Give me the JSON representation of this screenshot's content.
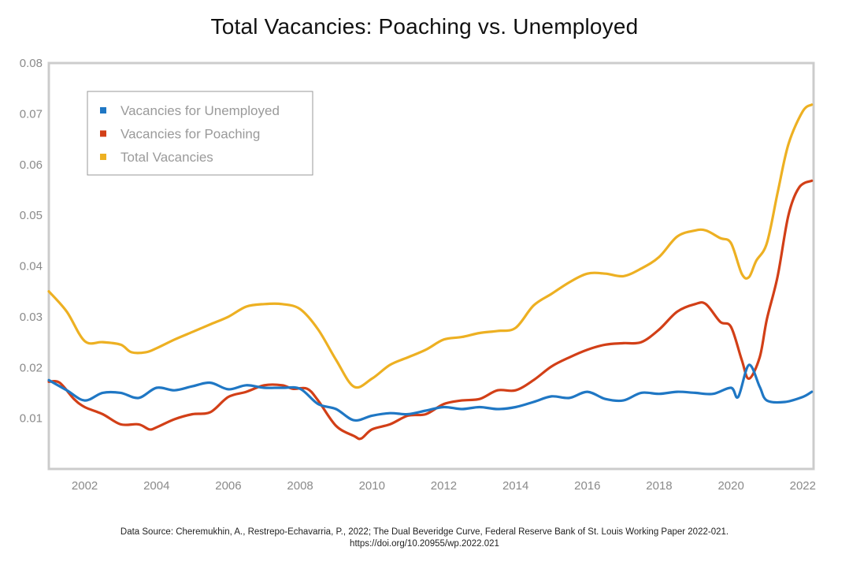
{
  "title": "Total Vacancies: Poaching vs. Unemployed",
  "source": {
    "line1": "Data Source: Cheremukhin, A., Restrepo-Echavarria, P., 2022; The Dual Beveridge Curve, Federal Reserve Bank of St. Louis Working Paper 2022-021.",
    "line2": "https://doi.org/10.20955/wp.2022.021"
  },
  "colors": {
    "unemployed": "#1f77c4",
    "poaching": "#d23f17",
    "total": "#edb022",
    "frame": "#cccccc",
    "tick": "#8a8a8a"
  },
  "chart_data": {
    "type": "line",
    "title": "Total Vacancies: Poaching vs. Unemployed",
    "xlabel": "",
    "ylabel": "",
    "xlim": [
      2001,
      2022.3
    ],
    "ylim": [
      0.0,
      0.08
    ],
    "xticks": [
      "2002",
      "2004",
      "2006",
      "2008",
      "2010",
      "2012",
      "2014",
      "2016",
      "2018",
      "2020",
      "2022"
    ],
    "yticks": [
      "0.01",
      "0.02",
      "0.03",
      "0.04",
      "0.05",
      "0.06",
      "0.07",
      "0.08"
    ],
    "grid": false,
    "legend_position": "top-left",
    "series": [
      {
        "name": "Vacancies for Unemployed",
        "color": "#1f77c4",
        "points": [
          [
            2001.0,
            0.0175
          ],
          [
            2001.5,
            0.0155
          ],
          [
            2002.0,
            0.0135
          ],
          [
            2002.5,
            0.015
          ],
          [
            2003.0,
            0.015
          ],
          [
            2003.5,
            0.014
          ],
          [
            2004.0,
            0.016
          ],
          [
            2004.5,
            0.0155
          ],
          [
            2005.0,
            0.0163
          ],
          [
            2005.5,
            0.017
          ],
          [
            2006.0,
            0.0157
          ],
          [
            2006.5,
            0.0165
          ],
          [
            2007.0,
            0.016
          ],
          [
            2007.5,
            0.016
          ],
          [
            2008.0,
            0.0158
          ],
          [
            2008.5,
            0.0128
          ],
          [
            2009.0,
            0.0118
          ],
          [
            2009.5,
            0.0096
          ],
          [
            2010.0,
            0.0105
          ],
          [
            2010.5,
            0.011
          ],
          [
            2011.0,
            0.0108
          ],
          [
            2011.5,
            0.0115
          ],
          [
            2012.0,
            0.0122
          ],
          [
            2012.5,
            0.0118
          ],
          [
            2013.0,
            0.0122
          ],
          [
            2013.5,
            0.0118
          ],
          [
            2014.0,
            0.0122
          ],
          [
            2014.5,
            0.0132
          ],
          [
            2015.0,
            0.0143
          ],
          [
            2015.5,
            0.014
          ],
          [
            2016.0,
            0.0152
          ],
          [
            2016.5,
            0.0138
          ],
          [
            2017.0,
            0.0135
          ],
          [
            2017.5,
            0.015
          ],
          [
            2018.0,
            0.0148
          ],
          [
            2018.5,
            0.0152
          ],
          [
            2019.0,
            0.015
          ],
          [
            2019.5,
            0.0148
          ],
          [
            2020.0,
            0.016
          ],
          [
            2020.2,
            0.0142
          ],
          [
            2020.5,
            0.0205
          ],
          [
            2020.8,
            0.0162
          ],
          [
            2021.0,
            0.0135
          ],
          [
            2021.5,
            0.0132
          ],
          [
            2022.0,
            0.0142
          ],
          [
            2022.25,
            0.0152
          ]
        ]
      },
      {
        "name": "Vacancies for Poaching",
        "color": "#d23f17",
        "points": [
          [
            2001.0,
            0.0172
          ],
          [
            2001.3,
            0.017
          ],
          [
            2001.7,
            0.0138
          ],
          [
            2002.0,
            0.0122
          ],
          [
            2002.5,
            0.0108
          ],
          [
            2003.0,
            0.0088
          ],
          [
            2003.5,
            0.0088
          ],
          [
            2003.8,
            0.0078
          ],
          [
            2004.0,
            0.0082
          ],
          [
            2004.5,
            0.0098
          ],
          [
            2005.0,
            0.0108
          ],
          [
            2005.5,
            0.0112
          ],
          [
            2006.0,
            0.0142
          ],
          [
            2006.5,
            0.0152
          ],
          [
            2007.0,
            0.0165
          ],
          [
            2007.5,
            0.0165
          ],
          [
            2007.8,
            0.0158
          ],
          [
            2008.2,
            0.0158
          ],
          [
            2008.5,
            0.0135
          ],
          [
            2009.0,
            0.0085
          ],
          [
            2009.5,
            0.0065
          ],
          [
            2009.7,
            0.006
          ],
          [
            2010.0,
            0.0078
          ],
          [
            2010.5,
            0.0088
          ],
          [
            2011.0,
            0.0105
          ],
          [
            2011.5,
            0.0108
          ],
          [
            2012.0,
            0.0128
          ],
          [
            2012.5,
            0.0135
          ],
          [
            2013.0,
            0.0138
          ],
          [
            2013.5,
            0.0155
          ],
          [
            2014.0,
            0.0155
          ],
          [
            2014.5,
            0.0175
          ],
          [
            2015.0,
            0.0202
          ],
          [
            2015.5,
            0.022
          ],
          [
            2016.0,
            0.0235
          ],
          [
            2016.5,
            0.0245
          ],
          [
            2017.0,
            0.0248
          ],
          [
            2017.5,
            0.025
          ],
          [
            2018.0,
            0.0275
          ],
          [
            2018.5,
            0.031
          ],
          [
            2019.0,
            0.0325
          ],
          [
            2019.3,
            0.0325
          ],
          [
            2019.7,
            0.029
          ],
          [
            2020.0,
            0.028
          ],
          [
            2020.3,
            0.0215
          ],
          [
            2020.5,
            0.0178
          ],
          [
            2020.8,
            0.022
          ],
          [
            2021.0,
            0.0295
          ],
          [
            2021.3,
            0.038
          ],
          [
            2021.6,
            0.05
          ],
          [
            2021.9,
            0.0555
          ],
          [
            2022.25,
            0.0568
          ]
        ]
      },
      {
        "name": "Total Vacancies",
        "color": "#edb022",
        "points": [
          [
            2001.0,
            0.035
          ],
          [
            2001.5,
            0.031
          ],
          [
            2002.0,
            0.0252
          ],
          [
            2002.5,
            0.025
          ],
          [
            2003.0,
            0.0245
          ],
          [
            2003.3,
            0.023
          ],
          [
            2003.7,
            0.023
          ],
          [
            2004.0,
            0.0238
          ],
          [
            2004.5,
            0.0255
          ],
          [
            2005.0,
            0.027
          ],
          [
            2005.5,
            0.0285
          ],
          [
            2006.0,
            0.03
          ],
          [
            2006.5,
            0.032
          ],
          [
            2007.0,
            0.0325
          ],
          [
            2007.5,
            0.0325
          ],
          [
            2008.0,
            0.0315
          ],
          [
            2008.5,
            0.0275
          ],
          [
            2009.0,
            0.0215
          ],
          [
            2009.5,
            0.0162
          ],
          [
            2010.0,
            0.0178
          ],
          [
            2010.5,
            0.0205
          ],
          [
            2011.0,
            0.022
          ],
          [
            2011.5,
            0.0235
          ],
          [
            2012.0,
            0.0255
          ],
          [
            2012.5,
            0.026
          ],
          [
            2013.0,
            0.0268
          ],
          [
            2013.5,
            0.0272
          ],
          [
            2014.0,
            0.0278
          ],
          [
            2014.5,
            0.0322
          ],
          [
            2015.0,
            0.0345
          ],
          [
            2015.5,
            0.0368
          ],
          [
            2016.0,
            0.0385
          ],
          [
            2016.5,
            0.0385
          ],
          [
            2017.0,
            0.038
          ],
          [
            2017.5,
            0.0395
          ],
          [
            2018.0,
            0.0418
          ],
          [
            2018.5,
            0.0458
          ],
          [
            2019.0,
            0.047
          ],
          [
            2019.3,
            0.047
          ],
          [
            2019.7,
            0.0455
          ],
          [
            2020.0,
            0.0445
          ],
          [
            2020.3,
            0.0385
          ],
          [
            2020.5,
            0.0378
          ],
          [
            2020.7,
            0.041
          ],
          [
            2021.0,
            0.0445
          ],
          [
            2021.3,
            0.0545
          ],
          [
            2021.6,
            0.064
          ],
          [
            2022.0,
            0.0705
          ],
          [
            2022.25,
            0.0718
          ]
        ]
      }
    ]
  }
}
